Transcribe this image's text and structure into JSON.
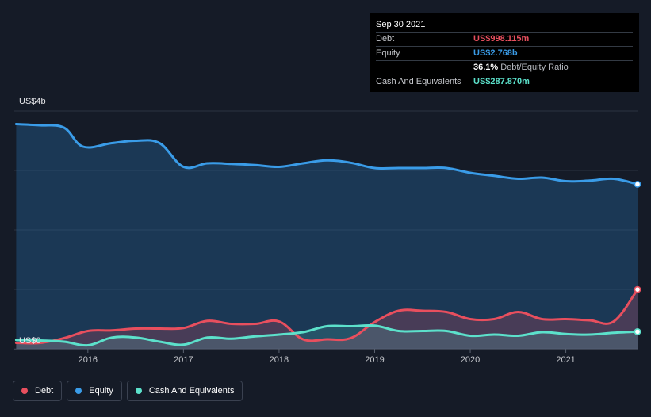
{
  "tooltip": {
    "date": "Sep 30 2021",
    "rows": [
      {
        "label": "Debt",
        "value": "US$998.115m",
        "color": "#e84f5e"
      },
      {
        "label": "Equity",
        "value": "US$2.768b",
        "color": "#3a9ce8"
      },
      {
        "label": "",
        "value": "36.1%",
        "suffix": "Debt/Equity Ratio",
        "color": "#ffffff"
      },
      {
        "label": "Cash And Equivalents",
        "value": "US$287.870m",
        "color": "#5ce1cb"
      }
    ]
  },
  "legend": [
    {
      "label": "Debt",
      "color": "#e84f5e"
    },
    {
      "label": "Equity",
      "color": "#3a9ce8"
    },
    {
      "label": "Cash And Equivalents",
      "color": "#5ce1cb"
    }
  ],
  "chart_data": {
    "type": "area",
    "y_unit": "US$ billions",
    "ylim": [
      0,
      4
    ],
    "xlim": [
      2015.23,
      2021.75
    ],
    "y_labels": [
      {
        "value": 4,
        "text": "US$4b"
      },
      {
        "value": 0,
        "text": "US$0"
      }
    ],
    "x_ticks": [
      "2016",
      "2017",
      "2018",
      "2019",
      "2020",
      "2021"
    ],
    "grid": true,
    "legend_position": "bottom-left",
    "series": [
      {
        "name": "Equity",
        "color": "#3a9ce8",
        "points": [
          [
            2015.25,
            3.78
          ],
          [
            2015.5,
            3.76
          ],
          [
            2015.75,
            3.72
          ],
          [
            2015.95,
            3.4
          ],
          [
            2016.25,
            3.46
          ],
          [
            2016.5,
            3.5
          ],
          [
            2016.75,
            3.46
          ],
          [
            2017.0,
            3.06
          ],
          [
            2017.25,
            3.12
          ],
          [
            2017.5,
            3.11
          ],
          [
            2017.75,
            3.09
          ],
          [
            2018.0,
            3.06
          ],
          [
            2018.25,
            3.12
          ],
          [
            2018.5,
            3.17
          ],
          [
            2018.75,
            3.13
          ],
          [
            2019.0,
            3.04
          ],
          [
            2019.25,
            3.04
          ],
          [
            2019.5,
            3.04
          ],
          [
            2019.75,
            3.04
          ],
          [
            2020.0,
            2.96
          ],
          [
            2020.25,
            2.91
          ],
          [
            2020.5,
            2.86
          ],
          [
            2020.75,
            2.88
          ],
          [
            2021.0,
            2.82
          ],
          [
            2021.25,
            2.83
          ],
          [
            2021.5,
            2.86
          ],
          [
            2021.75,
            2.768
          ]
        ]
      },
      {
        "name": "Debt",
        "color": "#e84f5e",
        "points": [
          [
            2015.25,
            0.1
          ],
          [
            2015.5,
            0.1
          ],
          [
            2015.75,
            0.18
          ],
          [
            2016.0,
            0.3
          ],
          [
            2016.25,
            0.31
          ],
          [
            2016.5,
            0.34
          ],
          [
            2016.75,
            0.34
          ],
          [
            2017.0,
            0.35
          ],
          [
            2017.25,
            0.47
          ],
          [
            2017.5,
            0.42
          ],
          [
            2017.75,
            0.42
          ],
          [
            2018.0,
            0.46
          ],
          [
            2018.25,
            0.16
          ],
          [
            2018.5,
            0.16
          ],
          [
            2018.75,
            0.18
          ],
          [
            2019.0,
            0.45
          ],
          [
            2019.25,
            0.64
          ],
          [
            2019.5,
            0.64
          ],
          [
            2019.75,
            0.62
          ],
          [
            2020.0,
            0.5
          ],
          [
            2020.25,
            0.5
          ],
          [
            2020.5,
            0.62
          ],
          [
            2020.75,
            0.5
          ],
          [
            2021.0,
            0.5
          ],
          [
            2021.25,
            0.48
          ],
          [
            2021.5,
            0.46
          ],
          [
            2021.75,
            0.998
          ]
        ]
      },
      {
        "name": "Cash And Equivalents",
        "color": "#5ce1cb",
        "points": [
          [
            2015.25,
            0.15
          ],
          [
            2015.5,
            0.14
          ],
          [
            2015.75,
            0.12
          ],
          [
            2016.0,
            0.06
          ],
          [
            2016.25,
            0.19
          ],
          [
            2016.5,
            0.19
          ],
          [
            2016.75,
            0.12
          ],
          [
            2017.0,
            0.07
          ],
          [
            2017.25,
            0.19
          ],
          [
            2017.5,
            0.17
          ],
          [
            2017.75,
            0.21
          ],
          [
            2018.0,
            0.24
          ],
          [
            2018.25,
            0.28
          ],
          [
            2018.5,
            0.38
          ],
          [
            2018.75,
            0.38
          ],
          [
            2019.0,
            0.39
          ],
          [
            2019.25,
            0.3
          ],
          [
            2019.5,
            0.3
          ],
          [
            2019.75,
            0.3
          ],
          [
            2020.0,
            0.22
          ],
          [
            2020.25,
            0.24
          ],
          [
            2020.5,
            0.22
          ],
          [
            2020.75,
            0.28
          ],
          [
            2021.0,
            0.25
          ],
          [
            2021.25,
            0.24
          ],
          [
            2021.5,
            0.27
          ],
          [
            2021.75,
            0.288
          ]
        ]
      }
    ]
  }
}
